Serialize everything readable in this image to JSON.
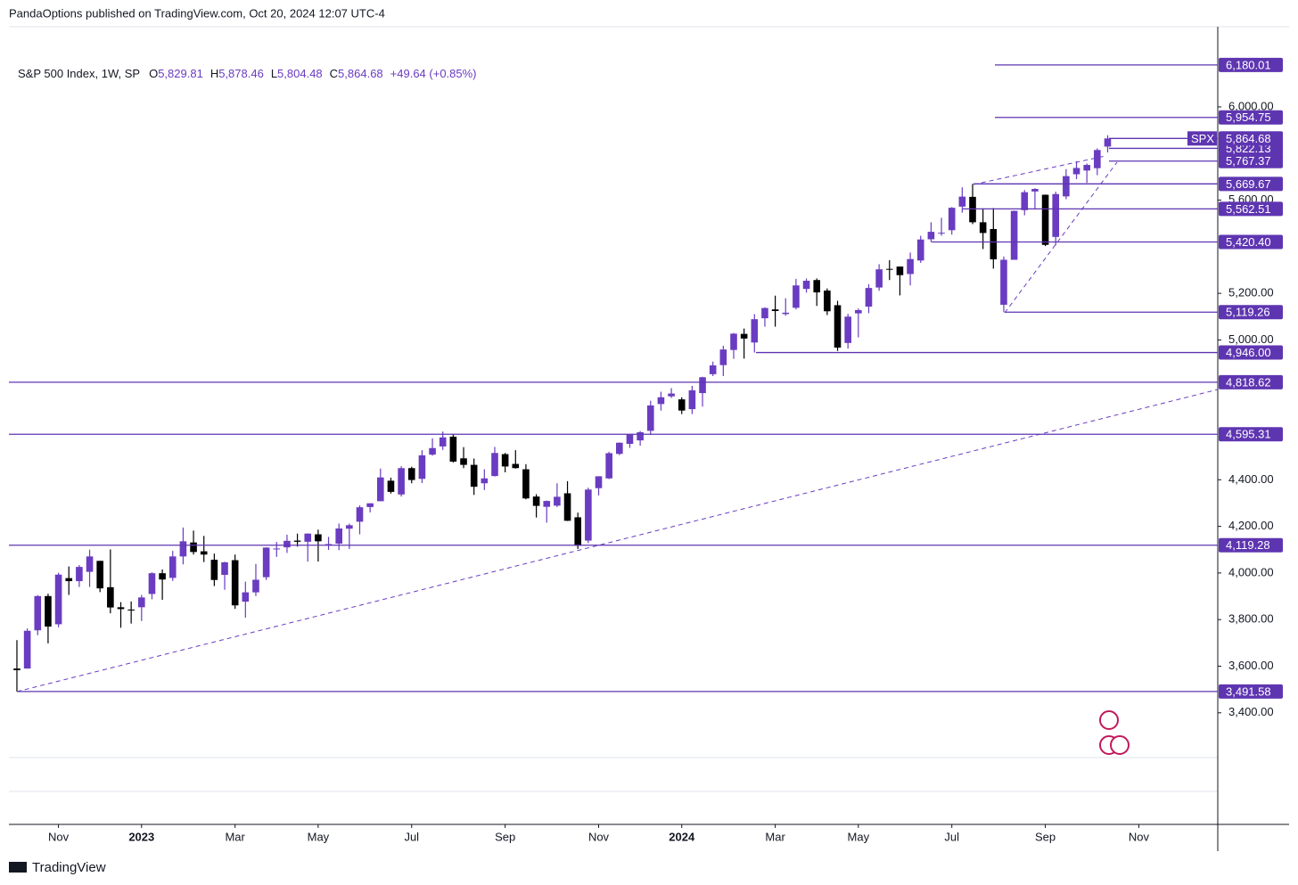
{
  "header": {
    "text": "PandaOptions published on TradingView.com, Oct 20, 2024 12:07 UTC-4"
  },
  "footer": {
    "brand": "TradingView"
  },
  "chart_data": {
    "type": "candlestick",
    "title": "S&P 500 Index, 1W, SP",
    "legend": [
      {
        "key": "O",
        "value": "5,829.81"
      },
      {
        "key": "H",
        "value": "5,878.46"
      },
      {
        "key": "L",
        "value": "5,804.48"
      },
      {
        "key": "C",
        "value": "5,864.68"
      }
    ],
    "change": "+49.64 (+0.85%)",
    "last_price_name": "SPX",
    "up_color": "#6a3cc1",
    "down_color": "#000000",
    "level_color": "#5e35b1",
    "ylim": [
      3208,
      6344
    ],
    "yticks": [
      {
        "value": 3400,
        "label": "3,400.00"
      },
      {
        "value": 3600,
        "label": "3,600.00"
      },
      {
        "value": 3800,
        "label": "3,800.00"
      },
      {
        "value": 4000,
        "label": "4,000.00"
      },
      {
        "value": 4200,
        "label": "4,200.00"
      },
      {
        "value": 4400,
        "label": "4,400.00"
      },
      {
        "value": 5000,
        "label": "5,000.00"
      },
      {
        "value": 5200,
        "label": "5,200.00"
      },
      {
        "value": 5600,
        "label": "5,600.00"
      },
      {
        "value": 6000,
        "label": "6,000.00"
      }
    ],
    "xlim": [
      -0.77,
      115.6
    ],
    "xticks": [
      {
        "value": 4,
        "label": "Nov"
      },
      {
        "value": 12,
        "label": "2023"
      },
      {
        "value": 21,
        "label": "Mar"
      },
      {
        "value": 29,
        "label": "May"
      },
      {
        "value": 38,
        "label": "Jul"
      },
      {
        "value": 47,
        "label": "Sep"
      },
      {
        "value": 56,
        "label": "Nov"
      },
      {
        "value": 64,
        "label": "2024"
      },
      {
        "value": 73,
        "label": "Mar"
      },
      {
        "value": 81,
        "label": "May"
      },
      {
        "value": 90,
        "label": "Jul"
      },
      {
        "value": 99,
        "label": "Sep"
      },
      {
        "value": 108,
        "label": "Nov"
      }
    ],
    "levels": [
      {
        "value": 6180.01,
        "label": "6,180.01"
      },
      {
        "value": 5954.75,
        "label": "5,954.75"
      },
      {
        "value": 5822.13,
        "label": "5,822.13"
      },
      {
        "value": 5864.68,
        "label": "5,864.68"
      },
      {
        "value": 5767.37,
        "label": "5,767.37"
      },
      {
        "value": 5669.67,
        "label": "5,669.67"
      },
      {
        "value": 5562.51,
        "label": "5,562.51"
      },
      {
        "value": 5420.4,
        "label": "5,420.40"
      },
      {
        "value": 5119.26,
        "label": "5,119.26"
      },
      {
        "value": 4946.0,
        "label": "4,946.00"
      },
      {
        "value": 4818.62,
        "label": "4,818.62"
      },
      {
        "value": 4595.31,
        "label": "4,595.31"
      },
      {
        "value": 4119.28,
        "label": "4,119.28"
      },
      {
        "value": 3491.58,
        "label": "3,491.58"
      }
    ],
    "ohlc": [
      [
        3590,
        3712,
        3491.58,
        3583
      ],
      [
        3590,
        3762,
        3590,
        3752
      ],
      [
        3754,
        3905,
        3733,
        3901
      ],
      [
        3901,
        3911,
        3698,
        3770
      ],
      [
        3780,
        4001,
        3767,
        3993
      ],
      [
        3978,
        4028,
        3906,
        3965
      ],
      [
        3965,
        4034,
        3940,
        4026
      ],
      [
        4005,
        4100,
        3940,
        4071
      ],
      [
        4052,
        4052,
        3918,
        3934
      ],
      [
        3939,
        4101,
        3827,
        3852
      ],
      [
        3853,
        3875,
        3765,
        3845
      ],
      [
        3843,
        3878,
        3783,
        3839
      ],
      [
        3853,
        3906,
        3794,
        3895
      ],
      [
        3910,
        4003,
        3887,
        3999
      ],
      [
        3999,
        4015,
        3885,
        3972
      ],
      [
        3979,
        4095,
        3966,
        4071
      ],
      [
        4071,
        4195,
        4037,
        4136
      ],
      [
        4131,
        4182,
        4079,
        4090
      ],
      [
        4093,
        4159,
        4047,
        4079
      ],
      [
        4057,
        4083,
        3944,
        3970
      ],
      [
        3992,
        4048,
        3928,
        4046
      ],
      [
        4055,
        4079,
        3846,
        3861
      ],
      [
        3877,
        3963,
        3808,
        3917
      ],
      [
        3917,
        4039,
        3901,
        3971
      ],
      [
        3982,
        4110,
        3970,
        4109
      ],
      [
        4102,
        4133,
        4069,
        4105
      ],
      [
        4110,
        4164,
        4086,
        4138
      ],
      [
        4139,
        4169,
        4113,
        4134
      ],
      [
        4134,
        4170,
        4049,
        4169
      ],
      [
        4166,
        4186,
        4049,
        4136
      ],
      [
        4124,
        4155,
        4099,
        4124
      ],
      [
        4126,
        4212,
        4098,
        4191
      ],
      [
        4190,
        4212,
        4103,
        4205
      ],
      [
        4220,
        4290,
        4166,
        4282
      ],
      [
        4283,
        4299,
        4260,
        4299
      ],
      [
        4308,
        4448,
        4308,
        4410
      ],
      [
        4396,
        4409,
        4341,
        4348
      ],
      [
        4337,
        4458,
        4328,
        4450
      ],
      [
        4450,
        4456,
        4385,
        4399
      ],
      [
        4404,
        4527,
        4386,
        4505
      ],
      [
        4508,
        4578,
        4503,
        4536
      ],
      [
        4543,
        4607,
        4528,
        4582
      ],
      [
        4585,
        4594,
        4474,
        4478
      ],
      [
        4492,
        4540,
        4450,
        4464
      ],
      [
        4464,
        4491,
        4335,
        4370
      ],
      [
        4385,
        4445,
        4356,
        4406
      ],
      [
        4416,
        4541,
        4414,
        4515
      ],
      [
        4510,
        4515,
        4432,
        4457
      ],
      [
        4468,
        4527,
        4448,
        4450
      ],
      [
        4445,
        4467,
        4316,
        4320
      ],
      [
        4328,
        4338,
        4238,
        4288
      ],
      [
        4284,
        4311,
        4216,
        4309
      ],
      [
        4289,
        4385,
        4283,
        4327
      ],
      [
        4342,
        4394,
        4223,
        4224
      ],
      [
        4239,
        4259,
        4103,
        4117
      ],
      [
        4139,
        4366,
        4128,
        4358
      ],
      [
        4364,
        4415,
        4333,
        4415
      ],
      [
        4406,
        4520,
        4403,
        4514
      ],
      [
        4511,
        4560,
        4506,
        4559
      ],
      [
        4554,
        4596,
        4537,
        4594
      ],
      [
        4569,
        4609,
        4546,
        4604
      ],
      [
        4610,
        4739,
        4593,
        4719
      ],
      [
        4725,
        4778,
        4697,
        4754
      ],
      [
        4758,
        4793,
        4751,
        4770
      ],
      [
        4745,
        4754,
        4682,
        4697
      ],
      [
        4703,
        4803,
        4682,
        4784
      ],
      [
        4772,
        4842,
        4714,
        4840
      ],
      [
        4853,
        4907,
        4845,
        4891
      ],
      [
        4892,
        4975,
        4845,
        4959
      ],
      [
        4957,
        5030,
        4919,
        5027
      ],
      [
        5026,
        5049,
        4920,
        5006
      ],
      [
        4989,
        5111,
        4946,
        5089
      ],
      [
        5093,
        5140,
        5057,
        5137
      ],
      [
        5131,
        5190,
        5057,
        5124
      ],
      [
        5111,
        5179,
        5104,
        5117
      ],
      [
        5138,
        5262,
        5131,
        5234
      ],
      [
        5219,
        5264,
        5203,
        5254
      ],
      [
        5257,
        5264,
        5146,
        5204
      ],
      [
        5212,
        5221,
        5107,
        5123
      ],
      [
        5149,
        5168,
        4953,
        4967
      ],
      [
        4987,
        5112,
        4963,
        5100
      ],
      [
        5114,
        5135,
        5011,
        5128
      ],
      [
        5143,
        5239,
        5115,
        5223
      ],
      [
        5225,
        5325,
        5211,
        5303
      ],
      [
        5305,
        5342,
        5257,
        5304
      ],
      [
        5315,
        5315,
        5191,
        5278
      ],
      [
        5283,
        5375,
        5234,
        5347
      ],
      [
        5341,
        5447,
        5331,
        5431
      ],
      [
        5432,
        5505,
        5420,
        5464
      ],
      [
        5460,
        5524,
        5447,
        5460
      ],
      [
        5471,
        5570,
        5452,
        5567
      ],
      [
        5572,
        5655,
        5546,
        5615
      ],
      [
        5614,
        5669.67,
        5497,
        5505
      ],
      [
        5505,
        5565,
        5390,
        5459
      ],
      [
        5476,
        5566,
        5306,
        5346
      ],
      [
        5151,
        5358,
        5119.26,
        5344
      ],
      [
        5344,
        5555,
        5344,
        5554
      ],
      [
        5557,
        5643,
        5535,
        5634
      ],
      [
        5637,
        5651,
        5560,
        5648
      ],
      [
        5623,
        5624,
        5403,
        5408
      ],
      [
        5442,
        5636,
        5406,
        5626
      ],
      [
        5616,
        5733,
        5604,
        5703
      ],
      [
        5711,
        5767,
        5690,
        5738
      ],
      [
        5727,
        5757,
        5674,
        5751
      ],
      [
        5737,
        5822,
        5707,
        5815
      ],
      [
        5829.81,
        5878.46,
        5804.48,
        5864.68
      ]
    ]
  }
}
